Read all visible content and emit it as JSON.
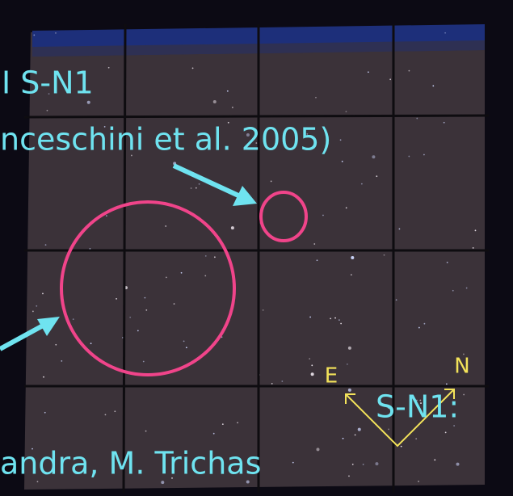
{
  "labels": {
    "field_top": "I S-N1",
    "citation": "nceschini et al. 2005)",
    "field_bottom": "S-N1:",
    "credit": "andra, M. Trichas"
  },
  "compass": {
    "east": "E",
    "north": "N"
  }
}
